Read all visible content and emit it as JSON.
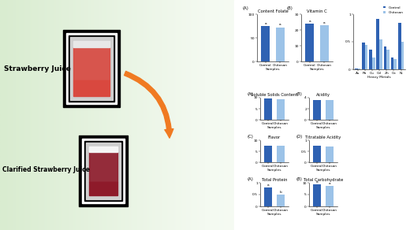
{
  "labels": [
    "Strawberry Juice",
    "Clarified Strawberry Juice"
  ],
  "chart_data": [
    {
      "type": "bar",
      "panel": "(A)",
      "title": "Content Folate",
      "xlabel": "Samples",
      "categories": [
        "Control",
        "Chitosan"
      ],
      "values": [
        75,
        72
      ],
      "colors": [
        "#2f62b3",
        "#9cc3e8"
      ],
      "annotations": [
        "a",
        "a"
      ],
      "ylim": [
        0,
        100
      ],
      "yticks": [
        0,
        50,
        100
      ]
    },
    {
      "type": "bar",
      "panel": "(B)",
      "title": "Vitamin C",
      "xlabel": "Samples",
      "categories": [
        "Control",
        "Chitosan"
      ],
      "values": [
        24,
        23
      ],
      "colors": [
        "#2f62b3",
        "#9cc3e8"
      ],
      "annotations": [
        "a",
        "a"
      ],
      "ylim": [
        0,
        30
      ],
      "yticks": [
        0,
        10,
        20,
        30
      ]
    },
    {
      "type": "bar",
      "xlabel": "Heavy Metals",
      "categories": [
        "As",
        "Pb",
        "Cu",
        "Cd",
        "Zn",
        "Co",
        "Ni"
      ],
      "series": [
        {
          "name": "Control",
          "color": "#2f62b3",
          "values": [
            0.02,
            0.48,
            0.36,
            0.92,
            0.42,
            0.22,
            0.85
          ]
        },
        {
          "name": "Chitosan",
          "color": "#9cc3e8",
          "values": [
            0.01,
            0.44,
            0.21,
            0.55,
            0.36,
            0.19,
            0.5
          ]
        }
      ],
      "legend": "upper right",
      "ylim": [
        0,
        1
      ],
      "yticks": [
        0,
        0.5,
        1
      ]
    },
    {
      "type": "bar",
      "panel": "(A)",
      "title": "Soluble Solids Content",
      "xlabel": "Samples",
      "categories": [
        "Control",
        "Chitosan"
      ],
      "values": [
        9.5,
        9.4
      ],
      "colors": [
        "#2f62b3",
        "#9cc3e8"
      ],
      "ylim": [
        0,
        10
      ],
      "yticks": [
        0,
        5,
        10
      ]
    },
    {
      "type": "bar",
      "panel": "(B)",
      "title": "Acidity",
      "xlabel": "Samples",
      "categories": [
        "Control",
        "Chitosan"
      ],
      "values": [
        3.6,
        3.5
      ],
      "colors": [
        "#2f62b3",
        "#9cc3e8"
      ],
      "ylim": [
        0,
        4
      ],
      "yticks": [
        0,
        2,
        4
      ]
    },
    {
      "type": "bar",
      "panel": "(C)",
      "title": "Flavor",
      "xlabel": "Samples",
      "categories": [
        "Control",
        "Chitosan"
      ],
      "values": [
        7.5,
        7.6
      ],
      "colors": [
        "#2f62b3",
        "#9cc3e8"
      ],
      "ylim": [
        0,
        10
      ],
      "yticks": [
        0,
        5,
        10
      ]
    },
    {
      "type": "bar",
      "panel": "(D)",
      "title": "Titratable Acidity",
      "xlabel": "Samples",
      "categories": [
        "Control",
        "Chitosan"
      ],
      "values": [
        0.75,
        0.72
      ],
      "colors": [
        "#2f62b3",
        "#9cc3e8"
      ],
      "ylim": [
        0,
        1
      ],
      "yticks": [
        0,
        0.5,
        1
      ]
    },
    {
      "type": "bar",
      "panel": "(A)",
      "title": "Total Protein",
      "xlabel": "Samples",
      "categories": [
        "Control",
        "Chitosan"
      ],
      "values": [
        0.8,
        0.5
      ],
      "colors": [
        "#2f62b3",
        "#9cc3e8"
      ],
      "annotations": [
        "a",
        "b"
      ],
      "ylim": [
        0,
        1
      ],
      "yticks": [
        0,
        0.5,
        1
      ]
    },
    {
      "type": "bar",
      "panel": "(B)",
      "title": "Total Carbohydrate",
      "xlabel": "Samples",
      "categories": [
        "Control",
        "Chitosan"
      ],
      "values": [
        9.2,
        8.6
      ],
      "colors": [
        "#2f62b3",
        "#9cc3e8"
      ],
      "annotations": [
        "a",
        "a"
      ],
      "ylim": [
        0,
        10
      ],
      "yticks": [
        0,
        5,
        10
      ]
    }
  ]
}
